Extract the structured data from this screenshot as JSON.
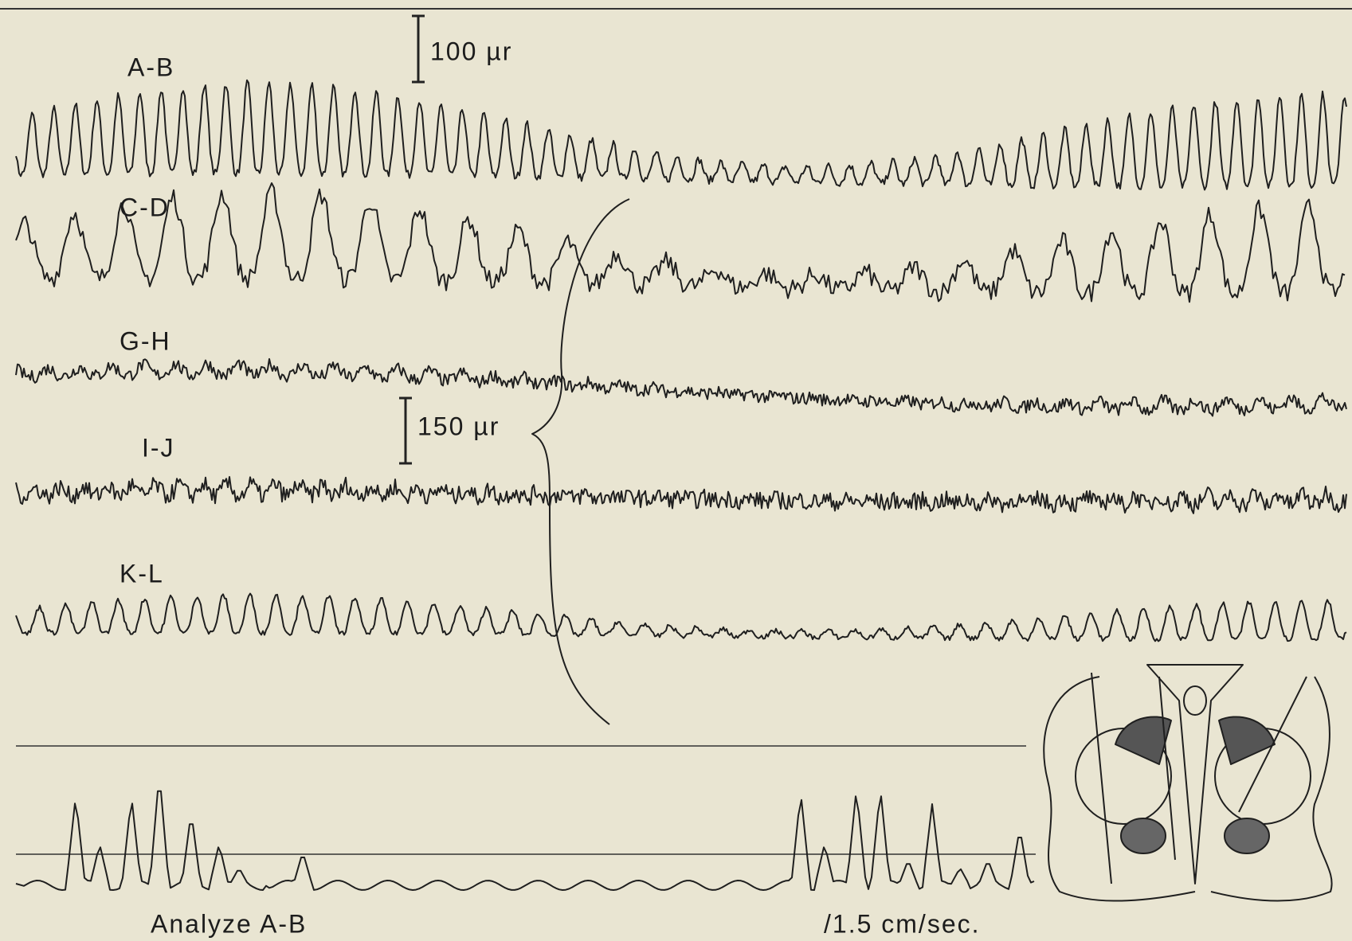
{
  "channels": [
    "A-B",
    "C-D",
    "G-H",
    "I-J",
    "K-L"
  ],
  "scale_bars": [
    "100 µr",
    "150 µr"
  ],
  "analyzer_label": "Analyze A-B",
  "speed_label": "/1.5 cm/sec."
}
